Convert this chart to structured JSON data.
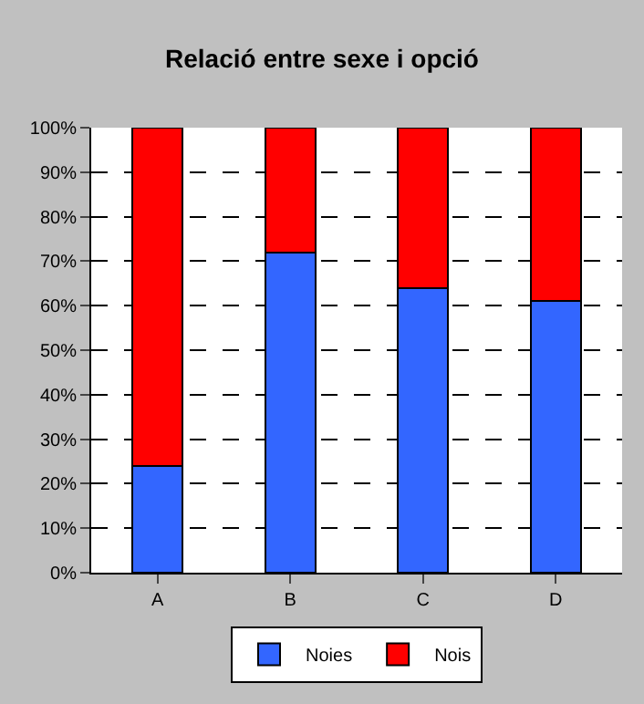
{
  "chart_data": {
    "type": "bar",
    "title": "Relació entre sexe i opció",
    "stacked": true,
    "categories": [
      "A",
      "B",
      "C",
      "D"
    ],
    "series": [
      {
        "name": "Noies",
        "color": "#3366ff",
        "values": [
          24,
          72,
          64,
          61
        ]
      },
      {
        "name": "Nois",
        "color": "#ff0000",
        "values": [
          76,
          28,
          36,
          39
        ]
      }
    ],
    "ylim": [
      0,
      100
    ],
    "yticks": [
      {
        "value": 0,
        "label": "0%"
      },
      {
        "value": 10,
        "label": "10%"
      },
      {
        "value": 20,
        "label": "20%"
      },
      {
        "value": 30,
        "label": "30%"
      },
      {
        "value": 40,
        "label": "40%"
      },
      {
        "value": 50,
        "label": "50%"
      },
      {
        "value": 60,
        "label": "60%"
      },
      {
        "value": 70,
        "label": "70%"
      },
      {
        "value": 80,
        "label": "80%"
      },
      {
        "value": 90,
        "label": "90%"
      },
      {
        "value": 100,
        "label": "100%"
      }
    ],
    "grid": "y",
    "legend": "bottom"
  }
}
